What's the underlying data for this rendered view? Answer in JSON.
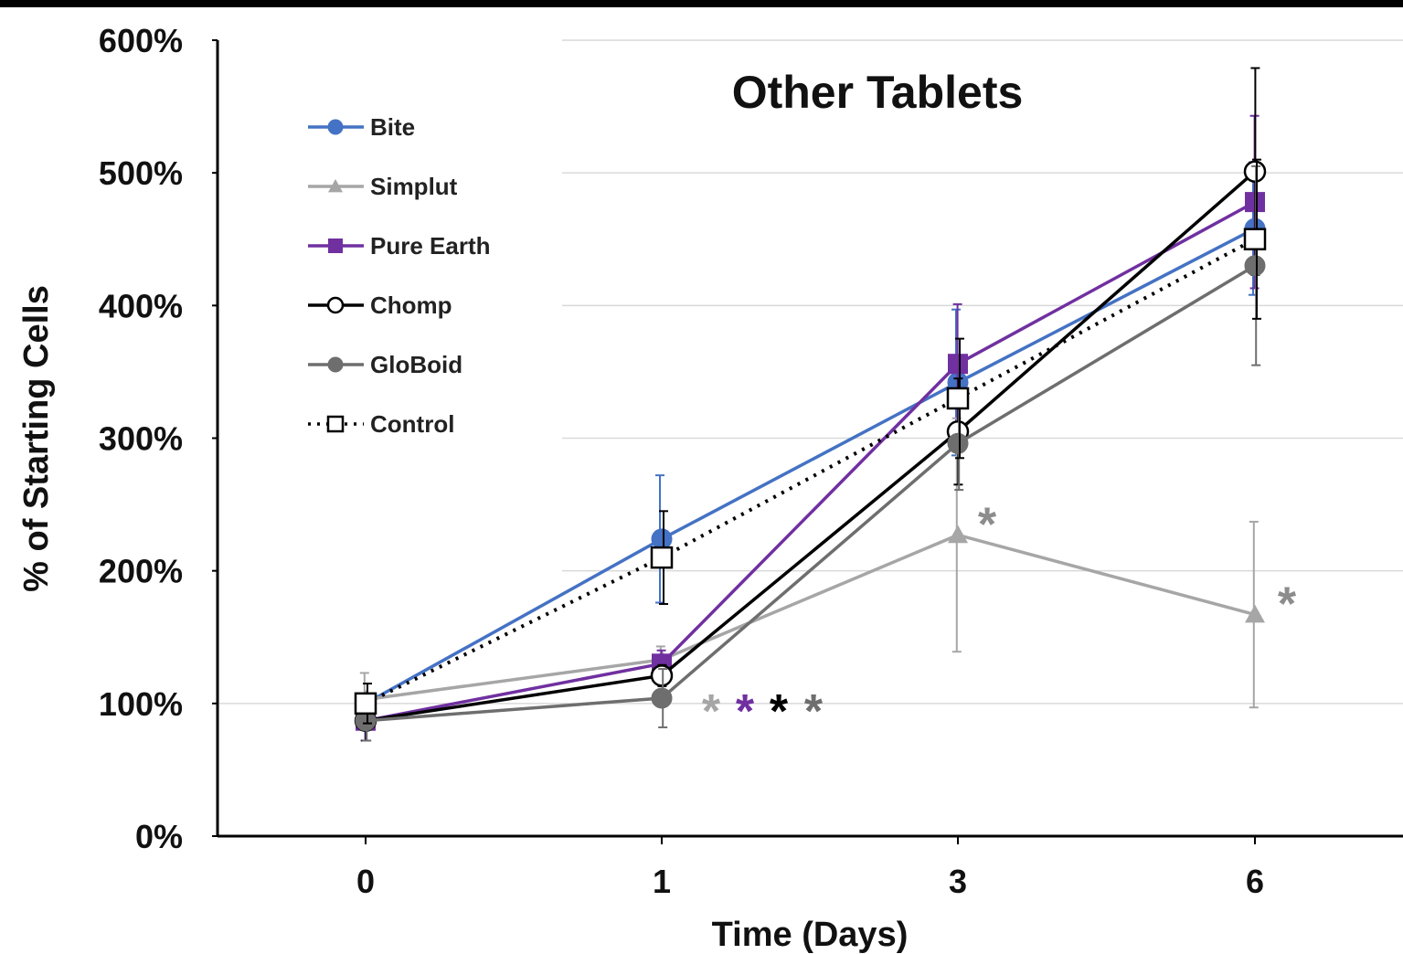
{
  "chart_data": {
    "type": "line",
    "title": "Other Tablets",
    "xlabel": "Time (Days)",
    "ylabel": "% of Starting Cells",
    "categories": [
      "0",
      "1",
      "3",
      "6"
    ],
    "y_ticks": [
      "0%",
      "100%",
      "200%",
      "300%",
      "400%",
      "500%",
      "600%"
    ],
    "ylim": [
      0,
      600
    ],
    "grid": "horizontal",
    "legend_position": "top-left",
    "series": [
      {
        "name": "Bite",
        "color": "#4472C4",
        "marker": "circle-filled",
        "line": "solid",
        "values": [
          100,
          224,
          342,
          458
        ],
        "err": [
          null,
          48,
          55,
          50
        ]
      },
      {
        "name": "Simplut",
        "color": "#A6A6A6",
        "marker": "triangle-filled",
        "line": "solid",
        "values": [
          103,
          133,
          227,
          167
        ],
        "err": [
          20,
          10,
          88,
          70
        ]
      },
      {
        "name": "Pure Earth",
        "color": "#7030A0",
        "marker": "square-filled",
        "line": "solid",
        "values": [
          87,
          130,
          356,
          478
        ],
        "err": [
          15,
          10,
          45,
          65
        ]
      },
      {
        "name": "Chomp",
        "color": "#000000",
        "marker": "circle-open",
        "line": "solid",
        "values": [
          87,
          121,
          305,
          501
        ],
        "err": [
          15,
          8,
          40,
          78
        ]
      },
      {
        "name": "GloBoid",
        "color": "#6E6E6E",
        "marker": "circle-filled",
        "line": "solid",
        "values": [
          87,
          104,
          296,
          430
        ],
        "err": [
          15,
          22,
          35,
          75
        ]
      },
      {
        "name": "Control",
        "color": "#000000",
        "marker": "square-open",
        "line": "dotted",
        "values": [
          100,
          210,
          330,
          450
        ],
        "err": [
          15,
          35,
          45,
          60
        ]
      }
    ],
    "annotations": [
      {
        "text": "*",
        "color": "#A6A6A6",
        "near": "day 1"
      },
      {
        "text": "*",
        "color": "#7030A0",
        "near": "day 1"
      },
      {
        "text": "*",
        "color": "#000000",
        "near": "day 1"
      },
      {
        "text": "*",
        "color": "#6E6E6E",
        "near": "day 1"
      },
      {
        "text": "*",
        "color": "#8C8C8C",
        "near": "day 3 Simplut"
      },
      {
        "text": "*",
        "color": "#8C8C8C",
        "near": "day 6 Simplut"
      }
    ]
  }
}
